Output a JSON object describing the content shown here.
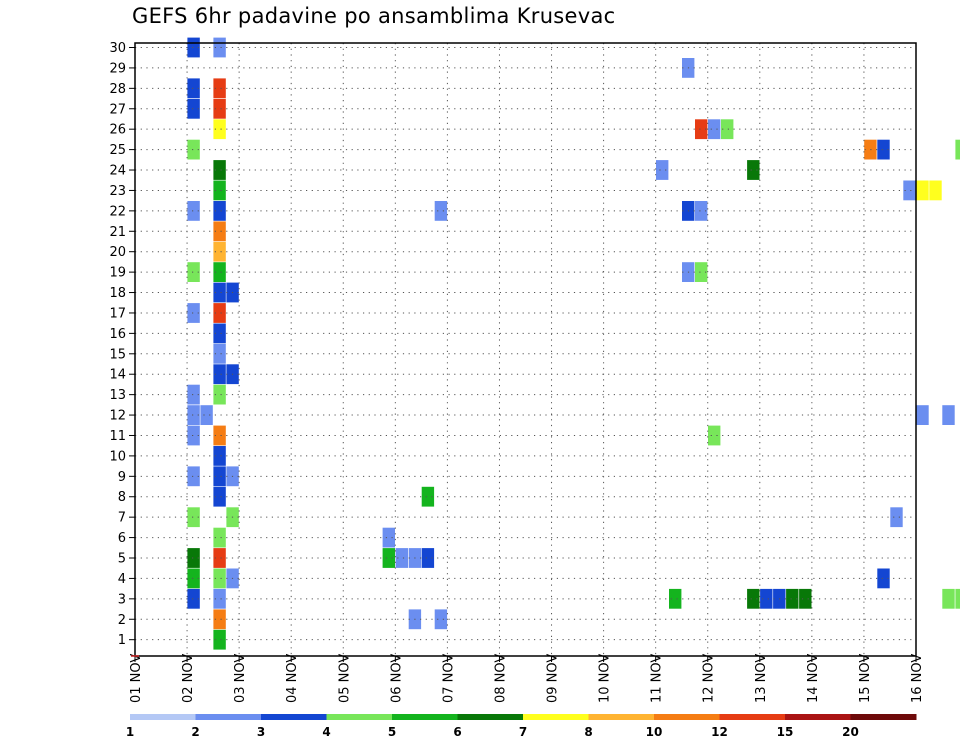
{
  "chart_data": {
    "type": "heatmap",
    "title": "GEFS 6hr padavine po ansamblima Krusevac",
    "xlabel": "",
    "ylabel": "",
    "x_tick_labels": [
      "01 NOV",
      "02 NOV",
      "03 NOV",
      "04 NOV",
      "05 NOV",
      "06 NOV",
      "07 NOV",
      "08 NOV",
      "09 NOV",
      "10 NOV",
      "11 NOV",
      "12 NOV",
      "13 NOV",
      "14 NOV",
      "15 NOV",
      "16 NOV"
    ],
    "y_tick_labels": [
      "1",
      "2",
      "3",
      "4",
      "5",
      "6",
      "7",
      "8",
      "9",
      "10",
      "11",
      "12",
      "13",
      "14",
      "15",
      "16",
      "17",
      "18",
      "19",
      "20",
      "21",
      "22",
      "23",
      "24",
      "25",
      "26",
      "27",
      "28",
      "29",
      "30"
    ],
    "x_range_days": [
      0,
      15
    ],
    "y_range": [
      0,
      30
    ],
    "time_step_hours": 6,
    "grid": "dotted",
    "colorbar": {
      "labels": [
        "1",
        "2",
        "3",
        "4",
        "5",
        "6",
        "7",
        "8",
        "10",
        "12",
        "15",
        "20"
      ],
      "colors": [
        "#b4c8f5",
        "#6b8ef0",
        "#1446d2",
        "#78e65a",
        "#14b41e",
        "#087808",
        "#ffff1e",
        "#ffb432",
        "#f57d14",
        "#e63c14",
        "#aa1414",
        "#6e0a0a"
      ]
    },
    "cells": [
      [
        1,
        30,
        2
      ],
      [
        1.5,
        30,
        1
      ],
      [
        1,
        28,
        2
      ],
      [
        1.5,
        28,
        9
      ],
      [
        1,
        27,
        2
      ],
      [
        1.5,
        27,
        9
      ],
      [
        1.5,
        26,
        6
      ],
      [
        1,
        25,
        3
      ],
      [
        1.5,
        24,
        5
      ],
      [
        1.5,
        23,
        4
      ],
      [
        1,
        22,
        1
      ],
      [
        1.5,
        22,
        2
      ],
      [
        1.5,
        21,
        8
      ],
      [
        1.5,
        20,
        7
      ],
      [
        1,
        19,
        3
      ],
      [
        1.5,
        19,
        4
      ],
      [
        1.5,
        18,
        2
      ],
      [
        1.75,
        18,
        2
      ],
      [
        1,
        17,
        1
      ],
      [
        1.5,
        17,
        9
      ],
      [
        1.5,
        16,
        2
      ],
      [
        1.5,
        15,
        1
      ],
      [
        1.5,
        14,
        2
      ],
      [
        1.75,
        14,
        2
      ],
      [
        1,
        13,
        1
      ],
      [
        1.5,
        13,
        3
      ],
      [
        1,
        12,
        1
      ],
      [
        1.25,
        12,
        1
      ],
      [
        1,
        11,
        1
      ],
      [
        1.5,
        11,
        8
      ],
      [
        1.5,
        10,
        2
      ],
      [
        1,
        9,
        1
      ],
      [
        1.5,
        9,
        2
      ],
      [
        1.75,
        9,
        1
      ],
      [
        1.5,
        8,
        2
      ],
      [
        1,
        7,
        3
      ],
      [
        1.75,
        7,
        3
      ],
      [
        1.5,
        6,
        3
      ],
      [
        1,
        5,
        5
      ],
      [
        1.5,
        5,
        9
      ],
      [
        1,
        4,
        4
      ],
      [
        1.5,
        4,
        3
      ],
      [
        1.75,
        4,
        1
      ],
      [
        1,
        3,
        2
      ],
      [
        1.5,
        3,
        1
      ],
      [
        1.5,
        2,
        8
      ],
      [
        1.5,
        1,
        4
      ],
      [
        4.75,
        6,
        1
      ],
      [
        4.75,
        5,
        4
      ],
      [
        5,
        5,
        1
      ],
      [
        5.25,
        5,
        1
      ],
      [
        5.25,
        2,
        1
      ],
      [
        5.75,
        2,
        1
      ],
      [
        5.75,
        22,
        1
      ],
      [
        5.5,
        8,
        4
      ],
      [
        5.5,
        5,
        2
      ],
      [
        10,
        24,
        1
      ],
      [
        10.5,
        29,
        1
      ],
      [
        10.75,
        26,
        9
      ],
      [
        11,
        26,
        1
      ],
      [
        11.25,
        26,
        3
      ],
      [
        10.5,
        22,
        2
      ],
      [
        10.75,
        22,
        1
      ],
      [
        10.5,
        19,
        1
      ],
      [
        10.75,
        19,
        3
      ],
      [
        11,
        11,
        3
      ],
      [
        11.75,
        24,
        5
      ],
      [
        10.25,
        3,
        4
      ],
      [
        11.75,
        3,
        5
      ],
      [
        12,
        3,
        2
      ],
      [
        12.25,
        3,
        2
      ],
      [
        12.5,
        3,
        5
      ],
      [
        12.75,
        3,
        5
      ],
      [
        14,
        25,
        8
      ],
      [
        14.25,
        25,
        2
      ],
      [
        14.75,
        23,
        1
      ],
      [
        15,
        23,
        6
      ],
      [
        15.25,
        23,
        6
      ],
      [
        15.75,
        25,
        3
      ],
      [
        15,
        12,
        1
      ],
      [
        15.5,
        12,
        1
      ],
      [
        14.5,
        7,
        1
      ],
      [
        14.25,
        4,
        2
      ],
      [
        15.5,
        3,
        3
      ],
      [
        15.75,
        3,
        3
      ]
    ]
  }
}
